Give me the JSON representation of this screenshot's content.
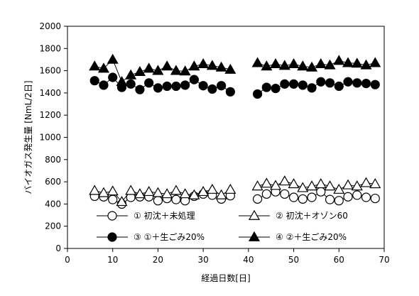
{
  "chart_data": {
    "type": "line",
    "title": "",
    "xlabel": "経過日数[日]",
    "ylabel": "バイオガス発生量 [NmL/2日]",
    "xlim": [
      0,
      70
    ],
    "ylim": [
      0,
      2000
    ],
    "xticks": [
      0,
      10,
      20,
      30,
      40,
      50,
      60,
      70
    ],
    "yticks": [
      0,
      200,
      400,
      600,
      800,
      1000,
      1200,
      1400,
      1600,
      1800,
      2000
    ],
    "grid": false,
    "legend_position": "bottom-inside",
    "series": [
      {
        "name": "① 初沈＋未処理",
        "marker": "circle-open",
        "color": "#000000",
        "x": [
          6,
          8,
          10,
          12,
          14,
          16,
          18,
          20,
          22,
          24,
          26,
          28,
          30,
          32,
          34,
          36,
          42,
          44,
          46,
          48,
          50,
          52,
          54,
          56,
          58,
          60,
          62,
          64,
          66,
          68
        ],
        "y": [
          470,
          465,
          440,
          400,
          460,
          465,
          465,
          430,
          450,
          440,
          430,
          470,
          490,
          480,
          445,
          475,
          445,
          490,
          510,
          490,
          460,
          445,
          460,
          510,
          440,
          430,
          465,
          480,
          460,
          450
        ]
      },
      {
        "name": "② 初沈＋オゾン60",
        "marker": "triangle-open",
        "color": "#000000",
        "x": [
          6,
          8,
          10,
          12,
          14,
          16,
          18,
          20,
          22,
          24,
          26,
          28,
          30,
          32,
          34,
          36,
          42,
          44,
          46,
          48,
          50,
          52,
          54,
          56,
          58,
          60,
          62,
          64,
          66,
          68
        ],
        "y": [
          520,
          500,
          515,
          420,
          520,
          490,
          510,
          500,
          490,
          520,
          490,
          480,
          510,
          530,
          480,
          530,
          560,
          585,
          565,
          605,
          580,
          545,
          560,
          580,
          560,
          530,
          570,
          560,
          590,
          580
        ]
      },
      {
        "name": "③ ①＋生ごみ20%",
        "marker": "circle-filled",
        "color": "#000000",
        "x": [
          6,
          8,
          10,
          12,
          14,
          16,
          18,
          20,
          22,
          24,
          26,
          28,
          30,
          32,
          34,
          36,
          42,
          44,
          46,
          48,
          50,
          52,
          54,
          56,
          58,
          60,
          62,
          64,
          66,
          68
        ],
        "y": [
          1510,
          1470,
          1540,
          1450,
          1480,
          1430,
          1490,
          1445,
          1460,
          1460,
          1470,
          1520,
          1465,
          1435,
          1465,
          1410,
          1390,
          1450,
          1440,
          1480,
          1480,
          1470,
          1445,
          1500,
          1490,
          1460,
          1500,
          1490,
          1485,
          1475
        ]
      },
      {
        "name": "④ ②＋生ごみ20%",
        "marker": "triangle-filled",
        "color": "#000000",
        "x": [
          6,
          8,
          10,
          12,
          14,
          16,
          18,
          20,
          22,
          24,
          26,
          28,
          30,
          32,
          34,
          36,
          42,
          44,
          46,
          48,
          50,
          52,
          54,
          56,
          58,
          60,
          62,
          64,
          66,
          68
        ],
        "y": [
          1640,
          1620,
          1700,
          1500,
          1560,
          1590,
          1620,
          1600,
          1640,
          1600,
          1595,
          1640,
          1660,
          1645,
          1630,
          1610,
          1670,
          1640,
          1660,
          1645,
          1660,
          1640,
          1630,
          1660,
          1650,
          1690,
          1670,
          1665,
          1650,
          1670
        ]
      }
    ]
  }
}
